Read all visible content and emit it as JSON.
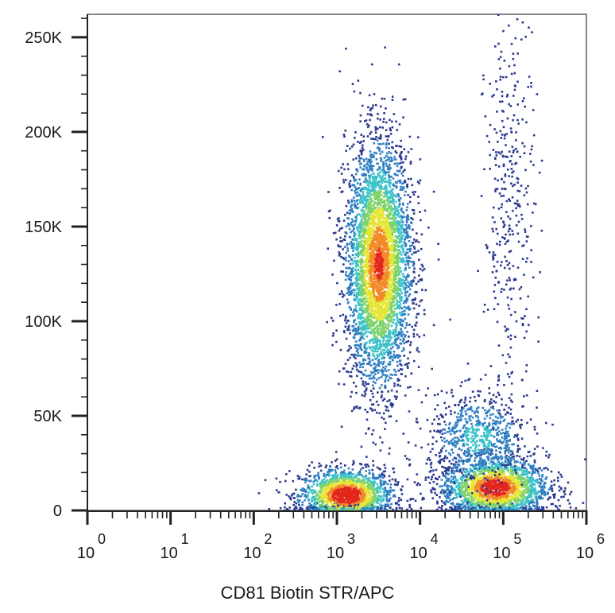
{
  "chart_data": {
    "type": "scatter",
    "subtype": "flow-cytometry density dot plot",
    "title": "",
    "xlabel": "CD81 Biotin  STR/APC",
    "ylabel": "",
    "x_scale": "log10",
    "xlim": [
      1,
      1000000
    ],
    "ylim": [
      0,
      262144
    ],
    "x_ticks": [
      {
        "base": "10",
        "exp": "0",
        "value": 1
      },
      {
        "base": "10",
        "exp": "1",
        "value": 10
      },
      {
        "base": "10",
        "exp": "2",
        "value": 100
      },
      {
        "base": "10",
        "exp": "3",
        "value": 1000
      },
      {
        "base": "10",
        "exp": "4",
        "value": 10000
      },
      {
        "base": "10",
        "exp": "5",
        "value": 100000
      },
      {
        "base": "10",
        "exp": "6",
        "value": 1000000
      }
    ],
    "y_ticks": [
      {
        "label": "0",
        "value": 0
      },
      {
        "label": "50K",
        "value": 50000
      },
      {
        "label": "100K",
        "value": 100000
      },
      {
        "label": "150K",
        "value": 150000
      },
      {
        "label": "200K",
        "value": 200000
      },
      {
        "label": "250K",
        "value": 250000
      }
    ],
    "grid": false,
    "density_colors": [
      "#2b3a8f",
      "#2f7fc1",
      "#3cc2c9",
      "#7ed36b",
      "#e5e534",
      "#f28a2a",
      "#e3261c"
    ],
    "populations": [
      {
        "x_center": 1300,
        "x_spread_log": 0.28,
        "y_center": 8000,
        "y_spread": 7000,
        "weight": 0.18,
        "peak_density": 1.0
      },
      {
        "x_center": 3200,
        "x_spread_log": 0.2,
        "y_center": 130000,
        "y_spread": 32000,
        "weight": 0.45,
        "peak_density": 0.85
      },
      {
        "x_center": 80000,
        "x_spread_log": 0.32,
        "y_center": 12000,
        "y_spread": 8000,
        "weight": 0.22,
        "peak_density": 0.95
      },
      {
        "x_center": 50000,
        "x_spread_log": 0.3,
        "y_center": 38000,
        "y_spread": 12000,
        "weight": 0.08,
        "peak_density": 0.3
      },
      {
        "x_center": 120000,
        "x_spread_log": 0.15,
        "y_center": 160000,
        "y_spread": 50000,
        "weight": 0.04,
        "peak_density": 0.1
      }
    ]
  }
}
